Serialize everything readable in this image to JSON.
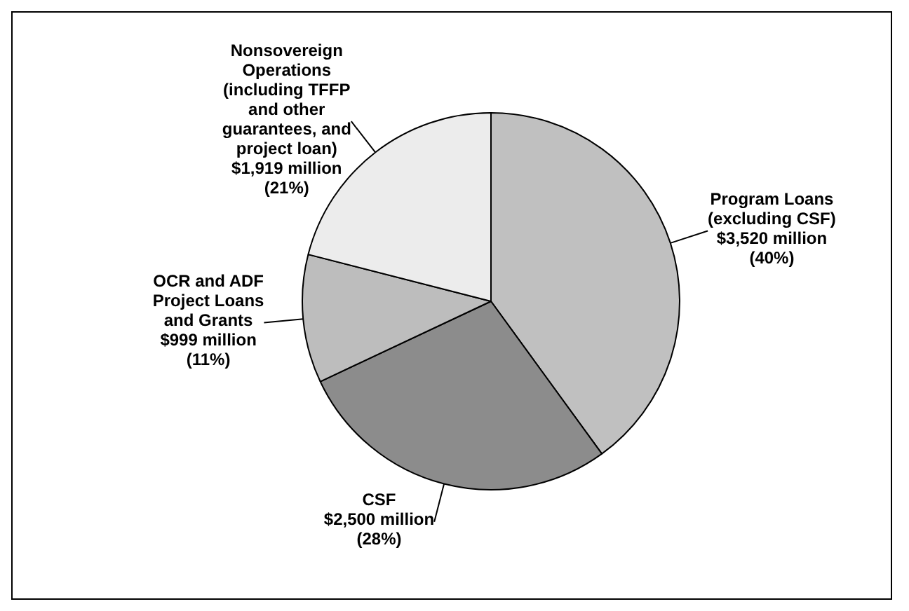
{
  "chart_data": {
    "type": "pie",
    "categories": [
      "Program Loans (excluding CSF)",
      "CSF",
      "OCR and ADF Project Loans and Grants",
      "Nonsovereign Operations (including TFFP and other guarantees, and project loan)"
    ],
    "values": [
      40,
      28,
      11,
      21
    ],
    "value_labels": [
      "$3,520 million (40%)",
      "$2,500 million (28%)",
      "$999 million (11%)",
      "$1,919 million (21%)"
    ],
    "colors": [
      "#c0c0c0",
      "#8c8c8c",
      "#bdbdbd",
      "#ececec"
    ],
    "legend": false
  }
}
